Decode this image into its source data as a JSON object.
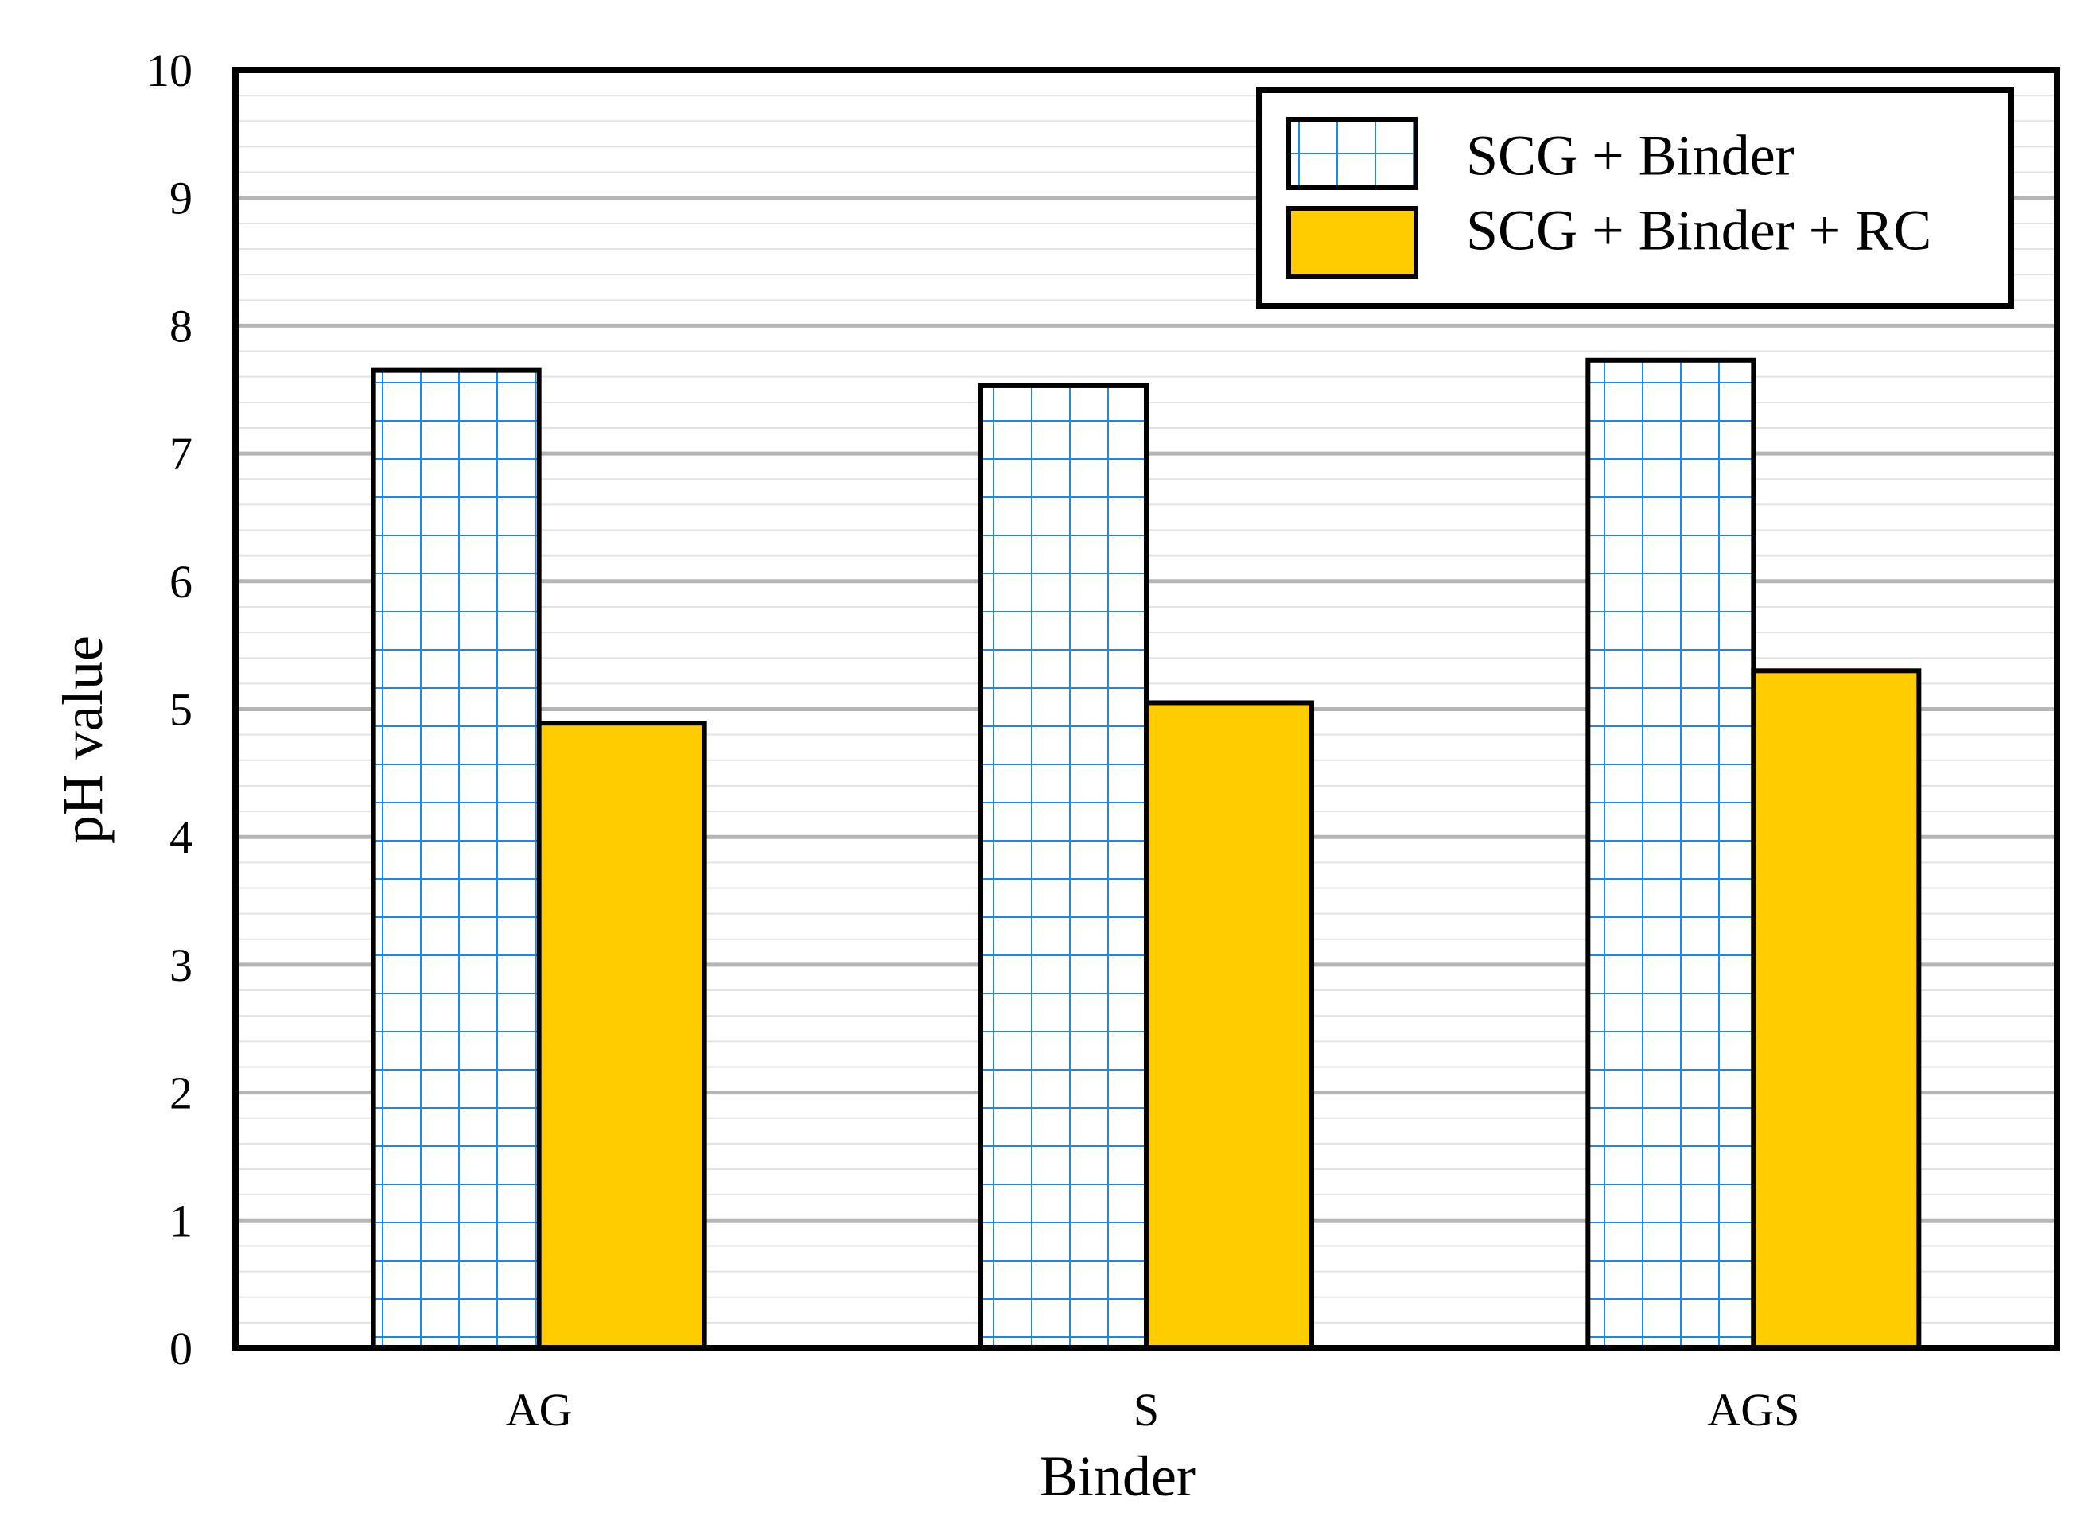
{
  "chart_data": {
    "type": "bar",
    "title": "",
    "xlabel": "Binder",
    "ylabel": "pH value",
    "categories": [
      "AG",
      "S",
      "AGS"
    ],
    "series": [
      {
        "name": "SCG + Binder",
        "values": [
          7.65,
          7.53,
          7.73
        ],
        "pattern": "grid",
        "color": "#1E88E5"
      },
      {
        "name": "SCG + Binder + RC",
        "values": [
          4.89,
          5.05,
          5.3
        ],
        "pattern": "solid",
        "color": "#FFCC00"
      }
    ],
    "ylim": [
      0,
      10
    ],
    "yticks": [
      "0",
      "1",
      "2",
      "3",
      "4",
      "5",
      "6",
      "7",
      "8",
      "9",
      "10"
    ],
    "grid": true,
    "legend_position": "top-right"
  }
}
